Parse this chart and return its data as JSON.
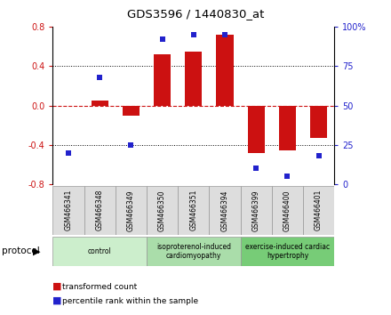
{
  "title": "GDS3596 / 1440830_at",
  "samples": [
    "GSM466341",
    "GSM466348",
    "GSM466349",
    "GSM466350",
    "GSM466351",
    "GSM466394",
    "GSM466399",
    "GSM466400",
    "GSM466401"
  ],
  "bar_values": [
    0.0,
    0.05,
    -0.1,
    0.52,
    0.55,
    0.72,
    -0.48,
    -0.46,
    -0.33
  ],
  "dot_values": [
    20,
    68,
    25,
    92,
    95,
    95,
    10,
    5,
    18
  ],
  "ylim_left": [
    -0.8,
    0.8
  ],
  "ylim_right": [
    0,
    100
  ],
  "yticks_left": [
    -0.8,
    -0.4,
    0.0,
    0.4,
    0.8
  ],
  "yticks_right": [
    0,
    25,
    50,
    75,
    100
  ],
  "bar_color": "#cc1111",
  "dot_color": "#2222cc",
  "groups": [
    {
      "label": "control",
      "start": 0,
      "end": 3,
      "color": "#cceecc"
    },
    {
      "label": "isoproterenol-induced\ncardiomyopathy",
      "start": 3,
      "end": 6,
      "color": "#aaddaa"
    },
    {
      "label": "exercise-induced cardiac\nhypertrophy",
      "start": 6,
      "end": 9,
      "color": "#77cc77"
    }
  ],
  "legend_bar_label": "transformed count",
  "legend_dot_label": "percentile rank within the sample",
  "protocol_label": "protocol"
}
